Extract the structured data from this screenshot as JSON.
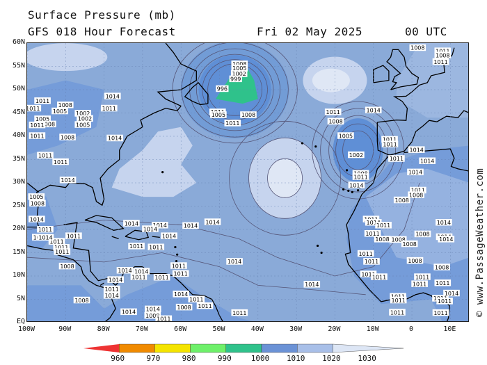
{
  "header": {
    "title": "Surface Pressure (mb)",
    "subtitle": "GFS 018 Hour Forecast",
    "date": "Fri 02 May 2025",
    "time": "00 UTC"
  },
  "credit": "© www.PassageWeather.com",
  "axes": {
    "lat_labels": [
      "60N",
      "55N",
      "50N",
      "45N",
      "40N",
      "35N",
      "30N",
      "25N",
      "20N",
      "15N",
      "10N",
      "5N",
      "EQ"
    ],
    "lon_labels": [
      "100W",
      "90W",
      "80W",
      "70W",
      "60W",
      "50W",
      "40W",
      "30W",
      "20W",
      "10W",
      "0",
      "10E"
    ]
  },
  "pressure_labels": [
    {
      "v": "1008",
      "lon": -44.8,
      "lat": 55.5
    },
    {
      "v": "1005",
      "lon": -44.8,
      "lat": 54.6
    },
    {
      "v": "1002",
      "lon": -44.9,
      "lat": 53.4
    },
    {
      "v": "999",
      "lon": -45.8,
      "lat": 52.3
    },
    {
      "v": "996",
      "lon": -49.3,
      "lat": 50.2
    },
    {
      "v": "1011",
      "lon": -50.5,
      "lat": 45.2
    },
    {
      "v": "1008",
      "lon": -42.5,
      "lat": 44.6
    },
    {
      "v": "1005",
      "lon": -50.3,
      "lat": 44.6
    },
    {
      "v": "1011",
      "lon": -46.6,
      "lat": 42.8
    },
    {
      "v": "1014",
      "lon": -77.8,
      "lat": 48.6
    },
    {
      "v": "1011",
      "lon": -96.0,
      "lat": 47.6
    },
    {
      "v": "1008",
      "lon": -90.1,
      "lat": 46.7
    },
    {
      "v": "1011",
      "lon": -78.7,
      "lat": 46.0
    },
    {
      "v": "1005",
      "lon": -91.5,
      "lat": 45.4
    },
    {
      "v": "1002",
      "lon": -85.5,
      "lat": 44.9
    },
    {
      "v": "1002",
      "lon": -85.0,
      "lat": 43.8
    },
    {
      "v": "1005",
      "lon": -96.0,
      "lat": 43.7
    },
    {
      "v": "1005",
      "lon": -85.5,
      "lat": 42.5
    },
    {
      "v": "1008",
      "lon": -94.6,
      "lat": 42.6
    },
    {
      "v": "1011",
      "lon": -97.4,
      "lat": 42.4
    },
    {
      "v": "1008",
      "lon": -89.5,
      "lat": 39.8
    },
    {
      "v": "1014",
      "lon": -77.2,
      "lat": 39.6
    },
    {
      "v": "1011",
      "lon": -97.4,
      "lat": 40.1
    },
    {
      "v": "1011",
      "lon": -95.3,
      "lat": 35.9
    },
    {
      "v": "1011",
      "lon": -91.3,
      "lat": 34.5
    },
    {
      "v": "1014",
      "lon": -89.4,
      "lat": 30.6
    },
    {
      "v": "1014",
      "lon": -65.5,
      "lat": 20.9
    },
    {
      "v": "1014",
      "lon": -57.5,
      "lat": 20.8
    },
    {
      "v": "1014",
      "lon": -51.8,
      "lat": 21.6
    },
    {
      "v": "1014",
      "lon": -72.9,
      "lat": 21.3
    },
    {
      "v": "1014",
      "lon": -68.0,
      "lat": 20.1
    },
    {
      "v": "1014",
      "lon": -63.1,
      "lat": 18.6
    },
    {
      "v": "1014",
      "lon": -46.1,
      "lat": 13.1
    },
    {
      "v": "1014",
      "lon": -26.0,
      "lat": 8.2
    },
    {
      "v": "1011",
      "lon": -87.9,
      "lat": 18.6
    },
    {
      "v": "1011",
      "lon": -92.3,
      "lat": 17.4
    },
    {
      "v": "1011",
      "lon": -91.1,
      "lat": 16.1
    },
    {
      "v": "1011",
      "lon": -71.6,
      "lat": 16.4
    },
    {
      "v": "1011",
      "lon": -66.5,
      "lat": 16.2
    },
    {
      "v": "1011",
      "lon": -90.9,
      "lat": 15.2
    },
    {
      "v": "1011",
      "lon": -60.6,
      "lat": 12.2
    },
    {
      "v": "1011",
      "lon": -60.1,
      "lat": 10.5
    },
    {
      "v": "1011",
      "lon": -65.0,
      "lat": 9.7
    },
    {
      "v": "1011",
      "lon": -56.0,
      "lat": 5.0
    },
    {
      "v": "1011",
      "lon": -53.8,
      "lat": 3.6
    },
    {
      "v": "1011",
      "lon": -44.8,
      "lat": 2.1
    },
    {
      "v": "1008",
      "lon": -89.6,
      "lat": 12.1
    },
    {
      "v": "1008",
      "lon": -85.8,
      "lat": 4.8
    },
    {
      "v": "1014",
      "lon": -74.6,
      "lat": 11.2
    },
    {
      "v": "1014",
      "lon": -70.3,
      "lat": 11.0
    },
    {
      "v": "1008",
      "lon": -59.2,
      "lat": 3.3
    },
    {
      "v": "1014",
      "lon": -60.0,
      "lat": 6.1
    },
    {
      "v": "1014",
      "lon": -67.3,
      "lat": 2.9
    },
    {
      "v": "1008",
      "lon": -67.4,
      "lat": 1.5
    },
    {
      "v": "1011",
      "lon": -64.5,
      "lat": 0.8
    },
    {
      "v": "1014",
      "lon": -77.0,
      "lat": 9.2
    },
    {
      "v": "1014",
      "lon": -73.6,
      "lat": 2.3
    },
    {
      "v": "1011",
      "lon": -78.0,
      "lat": 7.2
    },
    {
      "v": "1014",
      "lon": -78.0,
      "lat": 5.8
    },
    {
      "v": "1014",
      "lon": -97.5,
      "lat": 22.2
    },
    {
      "v": "1008",
      "lon": -97.3,
      "lat": 25.6
    },
    {
      "v": "1005",
      "lon": -97.6,
      "lat": 27.0
    },
    {
      "v": "1011",
      "lon": -95.3,
      "lat": 20.0
    },
    {
      "v": "1011",
      "lon": -96.6,
      "lat": 18.3
    },
    {
      "v": "1014",
      "lon": -95.2,
      "lat": 18.3
    },
    {
      "v": "1011",
      "lon": -71.0,
      "lat": 9.8
    },
    {
      "v": "1011",
      "lon": -20.5,
      "lat": 45.2
    },
    {
      "v": "1014",
      "lon": -10.0,
      "lat": 45.6
    },
    {
      "v": "1008",
      "lon": -19.8,
      "lat": 43.2
    },
    {
      "v": "1005",
      "lon": -17.2,
      "lat": 40.1
    },
    {
      "v": "1002",
      "lon": -14.5,
      "lat": 36.0
    },
    {
      "v": "1011",
      "lon": -5.8,
      "lat": 39.3
    },
    {
      "v": "1011",
      "lon": -5.7,
      "lat": 38.3
    },
    {
      "v": "1011",
      "lon": -4.0,
      "lat": 35.2
    },
    {
      "v": "1008",
      "lon": -13.3,
      "lat": 32.0
    },
    {
      "v": "1011",
      "lon": -13.3,
      "lat": 31.3
    },
    {
      "v": "1014",
      "lon": -14.4,
      "lat": 29.5
    },
    {
      "v": "1014",
      "lon": 1.2,
      "lat": 37.1
    },
    {
      "v": "1014",
      "lon": 0.9,
      "lat": 32.3
    },
    {
      "v": "1011",
      "lon": 1.6,
      "lat": 28.4
    },
    {
      "v": "1008",
      "lon": 1.1,
      "lat": 27.4
    },
    {
      "v": "1008",
      "lon": -2.6,
      "lat": 26.3
    },
    {
      "v": "1011",
      "lon": -10.6,
      "lat": 22.2
    },
    {
      "v": "1014",
      "lon": -10.0,
      "lat": 21.5
    },
    {
      "v": "1011",
      "lon": -7.4,
      "lat": 20.9
    },
    {
      "v": "1011",
      "lon": -10.2,
      "lat": 19.1
    },
    {
      "v": "1008",
      "lon": -7.7,
      "lat": 17.9
    },
    {
      "v": "1008",
      "lon": -3.5,
      "lat": 17.8
    },
    {
      "v": "1008",
      "lon": 2.8,
      "lat": 19.0
    },
    {
      "v": "1008",
      "lon": -0.6,
      "lat": 16.9
    },
    {
      "v": "1011",
      "lon": -12.0,
      "lat": 14.8
    },
    {
      "v": "1011",
      "lon": -10.5,
      "lat": 13.1
    },
    {
      "v": "1008",
      "lon": 0.8,
      "lat": 13.3
    },
    {
      "v": "1011",
      "lon": 2.7,
      "lat": 9.8
    },
    {
      "v": "1011",
      "lon": 2.0,
      "lat": 8.3
    },
    {
      "v": "1011",
      "lon": -3.6,
      "lat": 5.6
    },
    {
      "v": "1011",
      "lon": -3.5,
      "lat": 4.8
    },
    {
      "v": "1011",
      "lon": -3.8,
      "lat": 2.2
    },
    {
      "v": "1011",
      "lon": -11.3,
      "lat": 10.4
    },
    {
      "v": "1011",
      "lon": -8.5,
      "lat": 9.8
    },
    {
      "v": "1014",
      "lon": 8.3,
      "lat": 21.5
    },
    {
      "v": "1014",
      "lon": 8.4,
      "lat": 18.4
    },
    {
      "v": "1014",
      "lon": 8.9,
      "lat": 17.9
    },
    {
      "v": "1011",
      "lon": 8.0,
      "lat": 8.5
    },
    {
      "v": "1008",
      "lon": 7.8,
      "lat": 11.9
    },
    {
      "v": "1011",
      "lon": 7.4,
      "lat": 5.2
    },
    {
      "v": "1011",
      "lon": 7.5,
      "lat": 2.1
    },
    {
      "v": "1014",
      "lon": 10.3,
      "lat": 6.3
    },
    {
      "v": "1011",
      "lon": 8.5,
      "lat": 4.6
    },
    {
      "v": "1014",
      "lon": 4.0,
      "lat": 34.7
    },
    {
      "v": "1011",
      "lon": 8.0,
      "lat": 58.3
    },
    {
      "v": "1008",
      "lon": 8.0,
      "lat": 57.4
    },
    {
      "v": "1011",
      "lon": 7.5,
      "lat": 56.0
    },
    {
      "v": "1008",
      "lon": 1.5,
      "lat": 59.0
    },
    {
      "v": "1011",
      "lon": -98.5,
      "lat": 46.0
    }
  ],
  "colorbar": {
    "labels": [
      "960",
      "970",
      "980",
      "990",
      "1000",
      "1010",
      "1020",
      "1030"
    ]
  },
  "colors": {
    "ocean": "#8aaad8",
    "high": "#c6d4ee",
    "high_core": "#dfe7f5",
    "low": "#5f8fd6",
    "deep_low": "#2fc28b",
    "land_low": "#6d97d9",
    "land_mid": "#9db8e1",
    "coast": "#000000",
    "isobar": "#555577",
    "grid": "#6680b0",
    "cb_960": "#ee3333",
    "cb_970": "#f08a00",
    "cb_980": "#f4e400",
    "cb_990": "#6ef06a",
    "cb_1000": "#2fc28b",
    "cb_1010": "#6b92d6",
    "cb_1020": "#a8bfe8",
    "cb_1030": "#dde6f5"
  }
}
